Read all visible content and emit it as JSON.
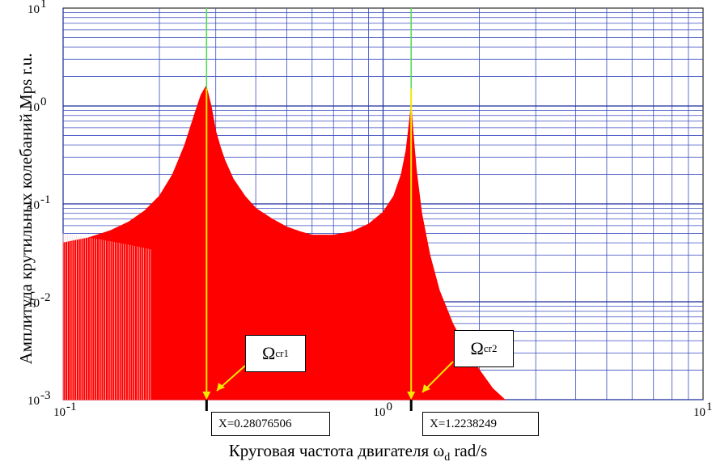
{
  "chart_data": {
    "type": "area",
    "xlabel": "Круговая частота двигателя",
    "xlabel_symbol": "ω",
    "xlabel_sub": "d",
    "xlabel_unit": "rad/s",
    "ylabel": "Амплитуда крутильных колебаний Mps  r.u.",
    "x_scale": "log",
    "y_scale": "log",
    "xlim": [
      0.1,
      10
    ],
    "ylim": [
      0.001,
      10
    ],
    "x_ticks": [
      {
        "base": "10",
        "exp": "-1"
      },
      {
        "base": "10",
        "exp": "0"
      },
      {
        "base": "10",
        "exp": "1"
      }
    ],
    "y_ticks": [
      {
        "base": "10",
        "exp": "-3"
      },
      {
        "base": "10",
        "exp": "-2"
      },
      {
        "base": "10",
        "exp": "-1"
      },
      {
        "base": "10",
        "exp": "0"
      },
      {
        "base": "10",
        "exp": "1"
      }
    ],
    "grid": true,
    "fill_color": "#ff0000",
    "series": [
      {
        "x": [
          0.1,
          0.12,
          0.14,
          0.16,
          0.18,
          0.2,
          0.22,
          0.24,
          0.26,
          0.27,
          0.28,
          0.29,
          0.3,
          0.31,
          0.32,
          0.34,
          0.37,
          0.4,
          0.45,
          0.5,
          0.55,
          0.6,
          0.7,
          0.8,
          0.9,
          1.0,
          1.08,
          1.14,
          1.18,
          1.21,
          1.2238,
          1.24,
          1.27,
          1.32,
          1.4,
          1.5,
          1.65,
          1.8,
          2.0,
          2.2,
          2.4
        ],
        "y": [
          0.04,
          0.045,
          0.053,
          0.065,
          0.085,
          0.12,
          0.2,
          0.4,
          0.9,
          1.3,
          1.6,
          1.0,
          0.55,
          0.38,
          0.28,
          0.18,
          0.12,
          0.09,
          0.07,
          0.058,
          0.052,
          0.048,
          0.048,
          0.052,
          0.062,
          0.082,
          0.12,
          0.2,
          0.35,
          0.7,
          1.0,
          0.55,
          0.22,
          0.08,
          0.03,
          0.013,
          0.006,
          0.0035,
          0.002,
          0.0013,
          0.001
        ]
      }
    ],
    "markers": [
      {
        "x": 0.28076506,
        "label": "X=0.28076506",
        "callout": "Ω",
        "callout_sub": "cr1"
      },
      {
        "x": 1.2238249,
        "label": "X=1.2238249",
        "callout": "Ω",
        "callout_sub": "cr2"
      }
    ]
  }
}
